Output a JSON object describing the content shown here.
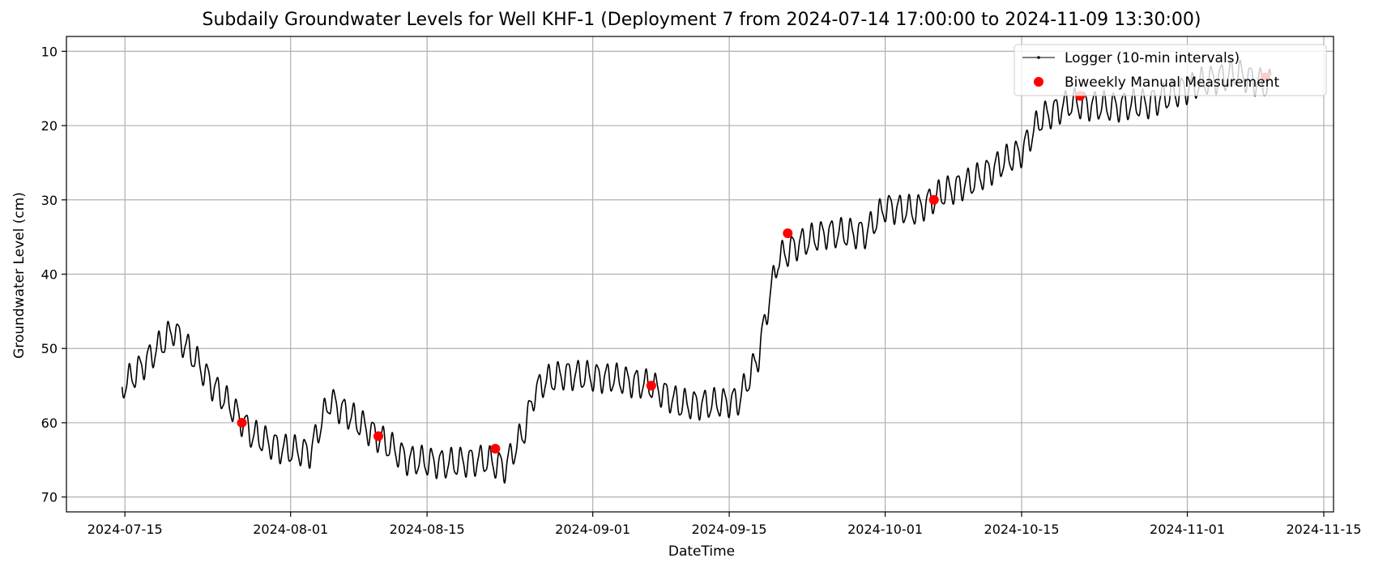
{
  "chart_data": {
    "type": "line",
    "title": "Subdaily Groundwater Levels for Well KHF-1 (Deployment 7 from 2024-07-14 17:00:00 to 2024-11-09 13:30:00)",
    "xlabel": "DateTime",
    "ylabel": "Groundwater Level (cm)",
    "x_range": [
      "2024-07-09",
      "2024-11-16"
    ],
    "y_range": [
      72,
      8
    ],
    "y_inverted": true,
    "grid": true,
    "legend_position": "top-right",
    "x_ticks": [
      "2024-07-15",
      "2024-08-01",
      "2024-08-15",
      "2024-09-01",
      "2024-09-15",
      "2024-10-01",
      "2024-10-15",
      "2024-11-01",
      "2024-11-15"
    ],
    "y_ticks": [
      10,
      20,
      30,
      40,
      50,
      60,
      70
    ],
    "series": [
      {
        "name": "Logger (10-min intervals)",
        "kind": "line",
        "color": "#000000",
        "daily_amplitude_cm": 1.8,
        "baseline": [
          [
            "2024-07-14",
            56.0
          ],
          [
            "2024-07-16",
            53.5
          ],
          [
            "2024-07-18",
            50.5
          ],
          [
            "2024-07-20",
            47.5
          ],
          [
            "2024-07-22",
            51.0
          ],
          [
            "2024-07-24",
            55.0
          ],
          [
            "2024-07-26",
            58.0
          ],
          [
            "2024-07-28",
            61.5
          ],
          [
            "2024-07-31",
            63.5
          ],
          [
            "2024-08-03",
            64.0
          ],
          [
            "2024-08-05",
            57.0
          ],
          [
            "2024-08-07",
            59.0
          ],
          [
            "2024-08-10",
            62.0
          ],
          [
            "2024-08-13",
            65.0
          ],
          [
            "2024-08-17",
            65.5
          ],
          [
            "2024-08-21",
            65.0
          ],
          [
            "2024-08-23",
            66.0
          ],
          [
            "2024-08-25",
            61.0
          ],
          [
            "2024-08-26",
            56.0
          ],
          [
            "2024-08-27",
            54.5
          ],
          [
            "2024-08-29",
            53.5
          ],
          [
            "2024-09-03",
            54.0
          ],
          [
            "2024-09-07",
            55.0
          ],
          [
            "2024-09-10",
            57.5
          ],
          [
            "2024-09-13",
            57.5
          ],
          [
            "2024-09-16",
            57.0
          ],
          [
            "2024-09-18",
            51.0
          ],
          [
            "2024-09-19",
            44.0
          ],
          [
            "2024-09-20",
            38.0
          ],
          [
            "2024-09-22",
            36.0
          ],
          [
            "2024-09-25",
            34.5
          ],
          [
            "2024-09-29",
            34.5
          ],
          [
            "2024-10-01",
            31.0
          ],
          [
            "2024-10-04",
            31.5
          ],
          [
            "2024-10-07",
            29.0
          ],
          [
            "2024-10-10",
            27.5
          ],
          [
            "2024-10-13",
            25.0
          ],
          [
            "2024-10-15",
            23.5
          ],
          [
            "2024-10-17",
            19.0
          ],
          [
            "2024-10-20",
            17.0
          ],
          [
            "2024-10-24",
            17.5
          ],
          [
            "2024-10-28",
            17.0
          ],
          [
            "2024-10-31",
            15.5
          ],
          [
            "2024-11-03",
            14.0
          ],
          [
            "2024-11-06",
            13.0
          ],
          [
            "2024-11-09",
            14.5
          ]
        ]
      },
      {
        "name": "Biweekly Manual Measurement",
        "kind": "scatter",
        "color": "#ff0000",
        "points": [
          [
            "2024-07-27",
            60.0
          ],
          [
            "2024-08-10",
            61.8
          ],
          [
            "2024-08-22",
            63.5
          ],
          [
            "2024-09-07",
            55.0
          ],
          [
            "2024-09-21",
            34.5
          ],
          [
            "2024-10-06",
            30.0
          ],
          [
            "2024-10-21",
            16.0
          ],
          [
            "2024-11-09",
            13.5
          ]
        ]
      }
    ]
  }
}
